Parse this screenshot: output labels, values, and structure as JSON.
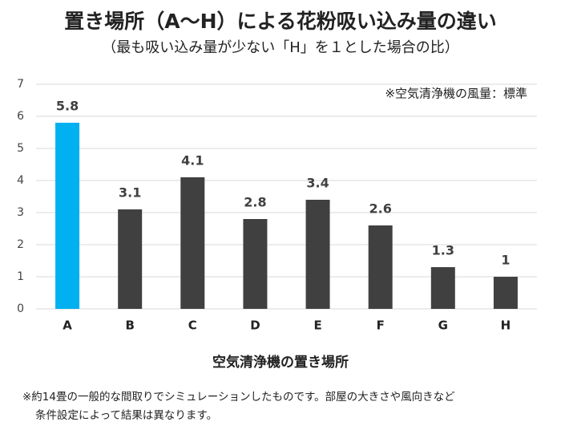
{
  "chart_data": {
    "type": "bar",
    "title": "置き場所（A〜H）による花粉吸い込み量の違い",
    "subtitle": "（最も吸い込み量が少ない「H」を１とした場合の比）",
    "note": "※空気清浄機の風量：標準",
    "x_label": "空気清浄機の置き場所",
    "footnote": [
      "※約14畳の一般的な間取りでシミュレーションしたものです。部屋の大きさや風向きなど",
      "条件設定によって結果は異なります。"
    ],
    "categories": [
      "A",
      "B",
      "C",
      "D",
      "E",
      "F",
      "G",
      "H"
    ],
    "values": [
      5.8,
      3.1,
      4.1,
      2.8,
      3.4,
      2.6,
      1.3,
      1
    ],
    "colors": [
      "#00b0f0",
      "#404040",
      "#404040",
      "#404040",
      "#404040",
      "#404040",
      "#404040",
      "#404040"
    ],
    "ylim": [
      0,
      7
    ],
    "yticks": [
      0,
      1,
      2,
      3,
      4,
      5,
      6,
      7
    ],
    "grid": true
  }
}
